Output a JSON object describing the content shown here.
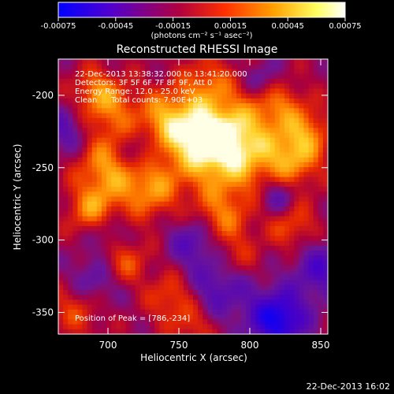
{
  "chart_data": {
    "type": "heatmap",
    "title": "Reconstructed RHESSI Image",
    "xlabel": "Heliocentric X (arcsec)",
    "ylabel": "Heliocentric Y (arcsec)",
    "xlim": [
      665,
      855
    ],
    "ylim": [
      -365,
      -175
    ],
    "xticks": [
      700,
      750,
      800,
      850
    ],
    "yticks": [
      -200,
      -250,
      -300,
      -350
    ],
    "colorbar": {
      "min": -0.00075,
      "max": 0.00075,
      "ticks": [
        "-0.00075",
        "-0.00045",
        "-0.00015",
        "0.00015",
        "0.00045",
        "0.00075"
      ],
      "units_label": "(photons cm⁻² s⁻¹ asec⁻²)"
    },
    "annotations": {
      "time_range": "22-Dec-2013 13:38:32.000 to 13:41:20.000",
      "detectors": "Detectors: 3F 5F 6F 7F 8F 9F, Att 0",
      "energy_range": "Energy Range: 12.0 - 25.0 keV",
      "algorithm": "Clean",
      "total_counts": "Total counts: 7.90E+03",
      "peak_position": "Position of Peak = [786,-234]"
    },
    "peak": {
      "x": 786,
      "y": -234
    },
    "colormap_colors": [
      "#0000ff",
      "#6600c0",
      "#c00030",
      "#ff5000",
      "#ffb000",
      "#ffffe0",
      "#ffffff"
    ],
    "grid": false,
    "legend": "colorbar top"
  },
  "footer": {
    "timestamp": "22-Dec-2013 16:02"
  }
}
